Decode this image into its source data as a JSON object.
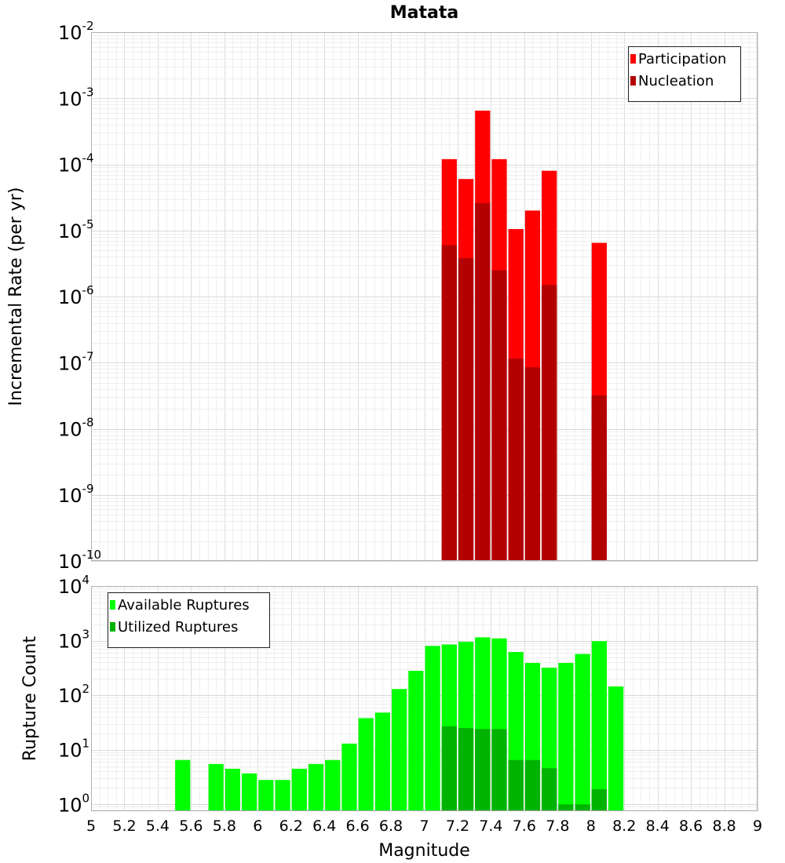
{
  "chart_data": [
    {
      "type": "bar",
      "title": "Matata",
      "xlabel": "",
      "ylabel": "Incremental Rate (per yr)",
      "xlim": [
        5,
        9
      ],
      "ylim": [
        1e-10,
        0.01
      ],
      "yscale": "log",
      "grid": true,
      "legend_position": "top-right",
      "y_ticks": [
        {
          "base": "10",
          "exp": "-2",
          "value": 0.01
        },
        {
          "base": "10",
          "exp": "-3",
          "value": 0.001
        },
        {
          "base": "10",
          "exp": "-4",
          "value": 0.0001
        },
        {
          "base": "10",
          "exp": "-5",
          "value": 1e-05
        },
        {
          "base": "10",
          "exp": "-6",
          "value": 1e-06
        },
        {
          "base": "10",
          "exp": "-7",
          "value": 1e-07
        },
        {
          "base": "10",
          "exp": "-8",
          "value": 1e-08
        },
        {
          "base": "10",
          "exp": "-9",
          "value": 1e-09
        },
        {
          "base": "10",
          "exp": "-10",
          "value": 1e-10
        }
      ],
      "series": [
        {
          "name": "Participation",
          "color": "#ff0000",
          "points": [
            {
              "x": 7.15,
              "y": 0.00012
            },
            {
              "x": 7.25,
              "y": 6e-05
            },
            {
              "x": 7.35,
              "y": 0.00065
            },
            {
              "x": 7.45,
              "y": 0.00012
            },
            {
              "x": 7.55,
              "y": 1.05e-05
            },
            {
              "x": 7.65,
              "y": 2e-05
            },
            {
              "x": 7.75,
              "y": 8e-05
            },
            {
              "x": 8.05,
              "y": 6.5e-06
            }
          ]
        },
        {
          "name": "Nucleation",
          "color": "#b30000",
          "points": [
            {
              "x": 7.15,
              "y": 6e-06
            },
            {
              "x": 7.25,
              "y": 3.8e-06
            },
            {
              "x": 7.35,
              "y": 2.6e-05
            },
            {
              "x": 7.45,
              "y": 2.5e-06
            },
            {
              "x": 7.55,
              "y": 1.15e-07
            },
            {
              "x": 7.65,
              "y": 8.5e-08
            },
            {
              "x": 7.75,
              "y": 1.5e-06
            },
            {
              "x": 8.05,
              "y": 3.2e-08
            }
          ]
        }
      ]
    },
    {
      "type": "bar",
      "title": "",
      "xlabel": "Magnitude",
      "ylabel": "Rupture Count",
      "xlim": [
        5,
        9
      ],
      "ylim": [
        0.75,
        10000
      ],
      "yscale": "log",
      "grid": true,
      "legend_position": "top-left",
      "x_ticks": [
        "5",
        "5.2",
        "5.4",
        "5.6",
        "5.8",
        "6",
        "6.2",
        "6.4",
        "6.6",
        "6.8",
        "7",
        "7.2",
        "7.4",
        "7.6",
        "7.8",
        "8",
        "8.2",
        "8.4",
        "8.6",
        "8.8",
        "9"
      ],
      "y_ticks": [
        {
          "base": "10",
          "exp": "4",
          "value": 10000.0
        },
        {
          "base": "10",
          "exp": "3",
          "value": 1000.0
        },
        {
          "base": "10",
          "exp": "2",
          "value": 100.0
        },
        {
          "base": "10",
          "exp": "1",
          "value": 10.0
        },
        {
          "base": "10",
          "exp": "0",
          "value": 1.0
        }
      ],
      "series": [
        {
          "name": "Available Ruptures",
          "color": "#00ff00",
          "points": [
            {
              "x": 5.55,
              "y": 6.5
            },
            {
              "x": 5.75,
              "y": 5.5
            },
            {
              "x": 5.85,
              "y": 4.5
            },
            {
              "x": 5.95,
              "y": 3.7
            },
            {
              "x": 6.05,
              "y": 2.8
            },
            {
              "x": 6.15,
              "y": 2.8
            },
            {
              "x": 6.25,
              "y": 4.5
            },
            {
              "x": 6.35,
              "y": 5.5
            },
            {
              "x": 6.45,
              "y": 6.5
            },
            {
              "x": 6.55,
              "y": 13
            },
            {
              "x": 6.65,
              "y": 38
            },
            {
              "x": 6.75,
              "y": 48
            },
            {
              "x": 6.85,
              "y": 130
            },
            {
              "x": 6.95,
              "y": 280
            },
            {
              "x": 7.05,
              "y": 800
            },
            {
              "x": 7.15,
              "y": 850
            },
            {
              "x": 7.25,
              "y": 950
            },
            {
              "x": 7.35,
              "y": 1150
            },
            {
              "x": 7.45,
              "y": 1100
            },
            {
              "x": 7.55,
              "y": 620
            },
            {
              "x": 7.65,
              "y": 390
            },
            {
              "x": 7.75,
              "y": 320
            },
            {
              "x": 7.85,
              "y": 390
            },
            {
              "x": 7.95,
              "y": 570
            },
            {
              "x": 8.05,
              "y": 980
            },
            {
              "x": 8.15,
              "y": 145
            }
          ]
        },
        {
          "name": "Utilized Ruptures",
          "color": "#00b300",
          "points": [
            {
              "x": 7.15,
              "y": 27
            },
            {
              "x": 7.25,
              "y": 25
            },
            {
              "x": 7.35,
              "y": 24
            },
            {
              "x": 7.45,
              "y": 24
            },
            {
              "x": 7.55,
              "y": 6.5
            },
            {
              "x": 7.65,
              "y": 6.5
            },
            {
              "x": 7.75,
              "y": 4.6
            },
            {
              "x": 7.85,
              "y": 1
            },
            {
              "x": 7.95,
              "y": 1
            },
            {
              "x": 8.05,
              "y": 1.9
            }
          ]
        }
      ]
    }
  ]
}
